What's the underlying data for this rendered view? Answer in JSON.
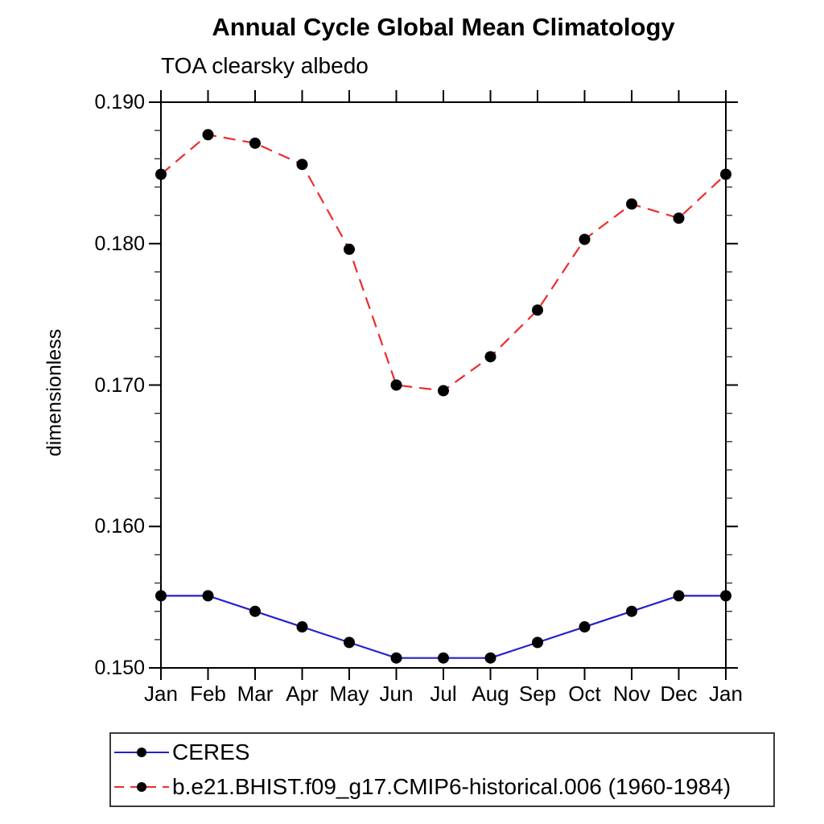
{
  "chart_data": {
    "type": "line",
    "title": "Annual Cycle Global Mean Climatology",
    "subtitle": "TOA clearsky albedo",
    "ylabel": "dimensionless",
    "xlabel": "",
    "x_categories": [
      "Jan",
      "Feb",
      "Mar",
      "Apr",
      "May",
      "Jun",
      "Jul",
      "Aug",
      "Sep",
      "Oct",
      "Nov",
      "Dec",
      "Jan"
    ],
    "ylim": [
      0.15,
      0.19
    ],
    "y_major_tick_labels": [
      "0.150",
      "0.160",
      "0.170",
      "0.180",
      "0.190"
    ],
    "y_major_ticks": [
      0.15,
      0.16,
      0.17,
      0.18,
      0.19
    ],
    "y_minor_step": 0.002,
    "grid": false,
    "frame_color": "#000000",
    "marker_color": "#000000",
    "series": [
      {
        "name": "CERES",
        "color": "#2222cc",
        "style": "solid",
        "marker": "circle",
        "values": [
          0.1551,
          0.1551,
          0.154,
          0.1529,
          0.1518,
          0.1507,
          0.1507,
          0.1507,
          0.1518,
          0.1529,
          0.154,
          0.1551,
          0.1551
        ]
      },
      {
        "name": "b.e21.BHIST.f09_g17.CMIP6-historical.006 (1960-1984)",
        "color": "#ee2c2c",
        "style": "dashed",
        "marker": "circle",
        "values": [
          0.1849,
          0.1877,
          0.1871,
          0.1856,
          0.1796,
          0.17,
          0.1696,
          0.172,
          0.1753,
          0.1803,
          0.1828,
          0.1818,
          0.1849
        ]
      }
    ],
    "legend_position": "bottom-left-box"
  }
}
